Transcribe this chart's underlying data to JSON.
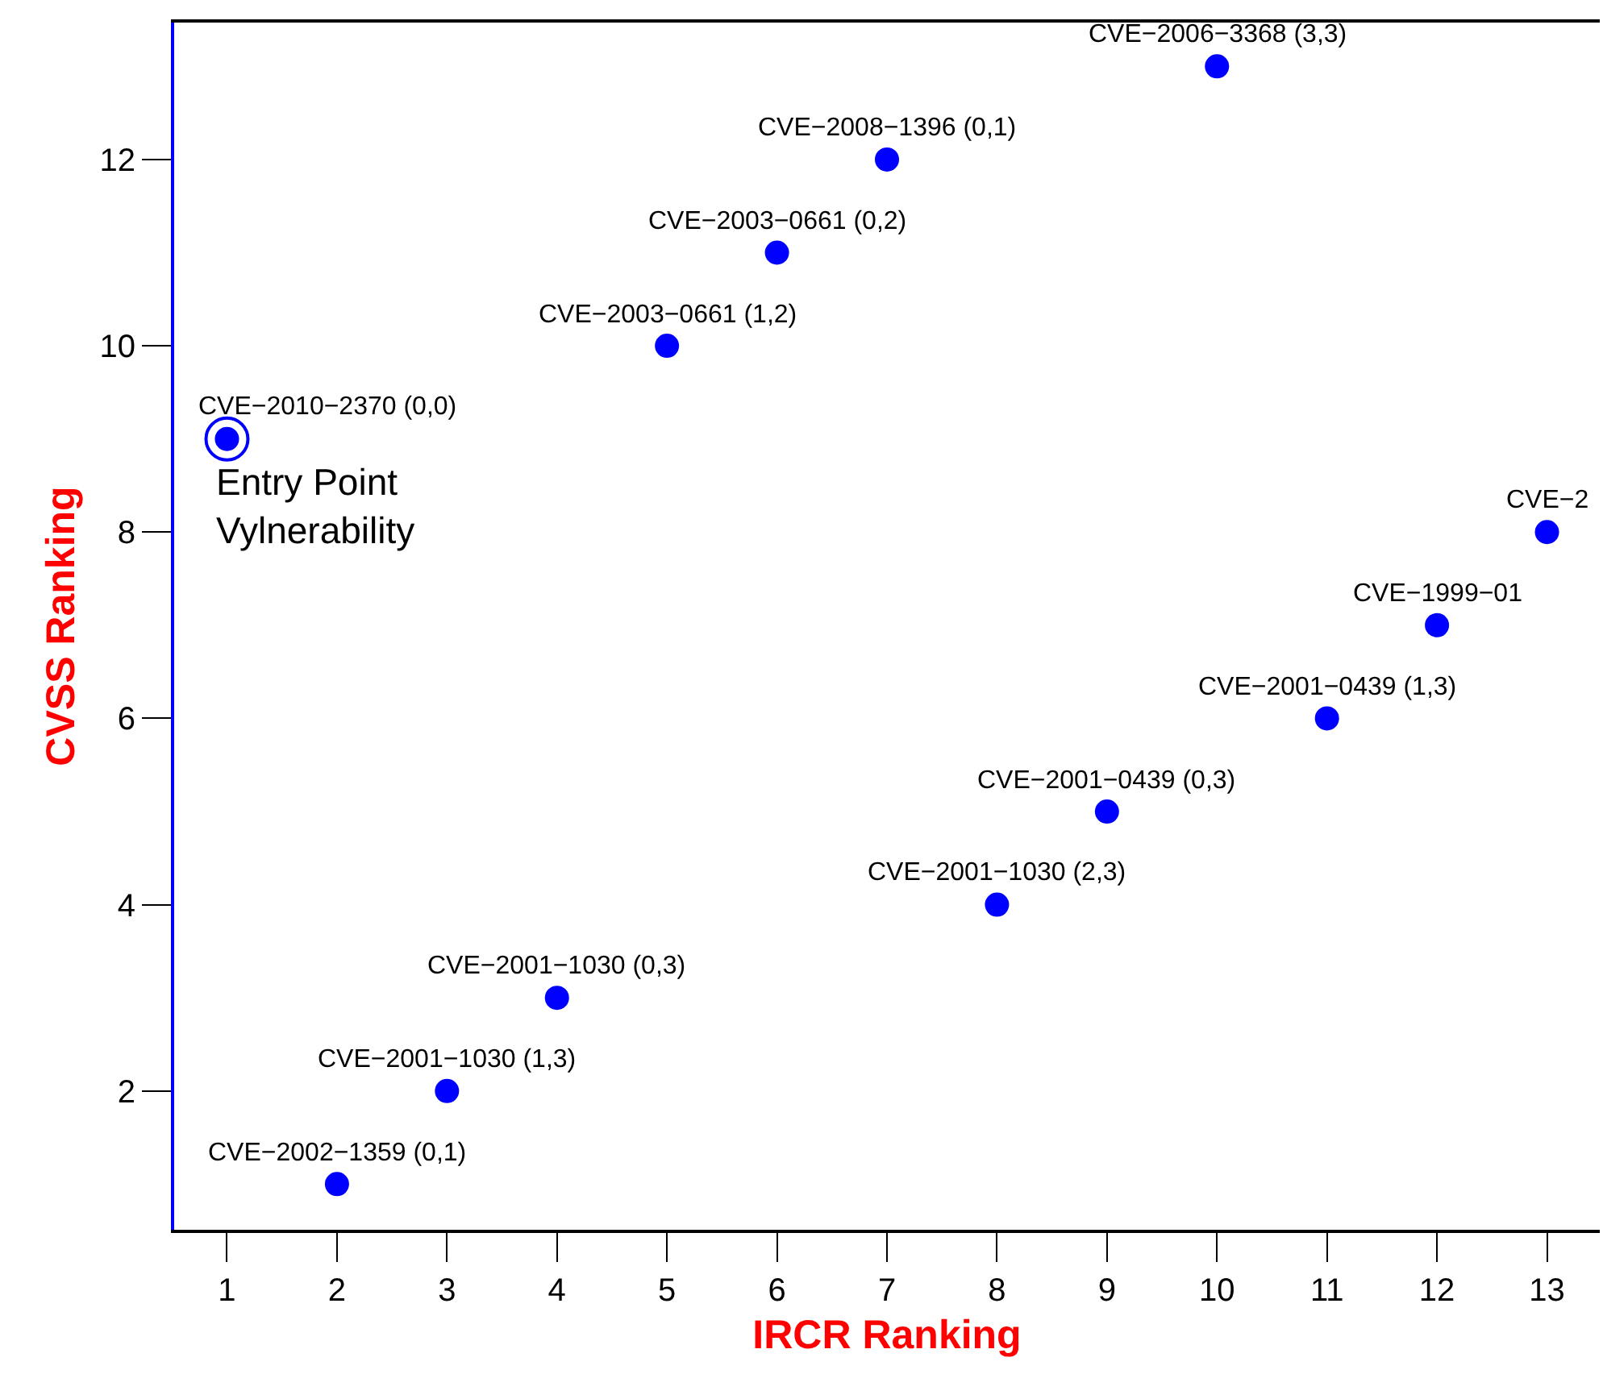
{
  "chart_data": {
    "type": "scatter",
    "xlabel": "IRCR Ranking",
    "ylabel": "CVSS Ranking",
    "x": [
      1,
      2,
      3,
      4,
      5,
      6,
      7,
      8,
      9,
      10,
      11,
      12,
      13
    ],
    "values": [
      9,
      1,
      2,
      3,
      10,
      11,
      12,
      4,
      5,
      13,
      6,
      7,
      8
    ],
    "color": "#0000ff",
    "marker": "circle",
    "xlim": [
      0.52,
      13.48
    ],
    "ylim": [
      0.51,
      13.47
    ],
    "xticks": [
      1,
      2,
      3,
      4,
      5,
      6,
      7,
      8,
      9,
      10,
      11,
      12,
      13
    ],
    "yticks": [
      2,
      4,
      6,
      8,
      10,
      12
    ],
    "annotations": [
      {
        "text": "CVE−2010−2370 (0,0)",
        "x": 1,
        "y": 9
      },
      {
        "text": "Entry Point\nVylnerability",
        "x": 1,
        "y": 9
      },
      {
        "text": "CVE−2002−1359 (0,1)",
        "x": 2,
        "y": 1
      },
      {
        "text": "CVE−2001−1030 (1,3)",
        "x": 3,
        "y": 2
      },
      {
        "text": "CVE−2001−1030 (0,3)",
        "x": 4,
        "y": 3
      },
      {
        "text": "CVE−2003−0661 (1,2)",
        "x": 5,
        "y": 10
      },
      {
        "text": "CVE−2003−0661 (0,2)",
        "x": 6,
        "y": 11
      },
      {
        "text": "CVE−2008−1396 (0,1)",
        "x": 7,
        "y": 12
      },
      {
        "text": "CVE−2001−1030 (2,3)",
        "x": 8,
        "y": 4
      },
      {
        "text": "CVE−2001−0439 (0,3)",
        "x": 9,
        "y": 5
      },
      {
        "text": "CVE−2006−3368 (3,3)",
        "x": 10,
        "y": 13
      },
      {
        "text": "CVE−2001−0439 (1,3)",
        "x": 11,
        "y": 6
      },
      {
        "text": "CVE−1999−01",
        "x": 12,
        "y": 7
      },
      {
        "text": "CVE−2",
        "x": 13,
        "y": 8
      }
    ]
  }
}
